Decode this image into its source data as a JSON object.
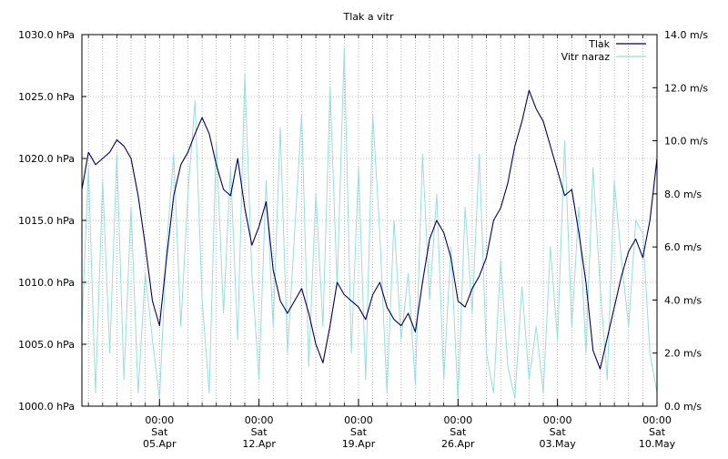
{
  "chart_data": {
    "type": "line",
    "title": "Tlak a vitr",
    "legend_position": "top-right",
    "grid": true,
    "y_left": {
      "range": [
        1000,
        1030
      ],
      "ticks": [
        1000,
        1005,
        1010,
        1015,
        1020,
        1025,
        1030
      ],
      "tick_labels": [
        "1000.0 hPa",
        "1005.0 hPa",
        "1010.0 hPa",
        "1015.0 hPa",
        "1020.0 hPa",
        "1025.0 hPa",
        "1030.0 hPa"
      ]
    },
    "y_right": {
      "range": [
        0,
        14
      ],
      "ticks": [
        0,
        2,
        4,
        6,
        8,
        10,
        12,
        14
      ],
      "tick_labels": [
        "0.0 m/s",
        "2.0 m/s",
        "4.0 m/s",
        "6.0 m/s",
        "8.0 m/s",
        "10.0 m/s",
        "12.0 m/s",
        "14.0 m/s"
      ]
    },
    "x_axis": {
      "range": [
        "2025-03-30T13:00",
        "2025-05-10T00:00"
      ],
      "ticks": [
        "2025-04-05T00:00",
        "2025-04-12T00:00",
        "2025-04-19T00:00",
        "2025-04-26T00:00",
        "2025-05-03T00:00",
        "2025-05-10T00:00"
      ],
      "tick_labels": [
        [
          "00:00",
          "Sat",
          "05.Apr"
        ],
        [
          "00:00",
          "Sat",
          "12.Apr"
        ],
        [
          "00:00",
          "Sat",
          "19.Apr"
        ],
        [
          "00:00",
          "Sat",
          "26.Apr"
        ],
        [
          "00:00",
          "Sat",
          "03.May"
        ],
        [
          "00:00",
          "Sat",
          "10.May"
        ]
      ]
    },
    "series": [
      {
        "name": "Tlak",
        "axis": "left",
        "color": "#000066",
        "x": [
          "2025-03-30T13:00",
          "2025-03-31T00:00",
          "2025-03-31T12:00",
          "2025-04-01T00:00",
          "2025-04-01T12:00",
          "2025-04-02T00:00",
          "2025-04-02T12:00",
          "2025-04-03T00:00",
          "2025-04-03T12:00",
          "2025-04-04T00:00",
          "2025-04-04T12:00",
          "2025-04-05T00:00",
          "2025-04-05T12:00",
          "2025-04-06T00:00",
          "2025-04-06T12:00",
          "2025-04-07T00:00",
          "2025-04-07T12:00",
          "2025-04-08T00:00",
          "2025-04-08T12:00",
          "2025-04-09T00:00",
          "2025-04-09T12:00",
          "2025-04-10T00:00",
          "2025-04-10T12:00",
          "2025-04-11T00:00",
          "2025-04-11T12:00",
          "2025-04-12T00:00",
          "2025-04-12T12:00",
          "2025-04-13T00:00",
          "2025-04-13T12:00",
          "2025-04-14T00:00",
          "2025-04-14T12:00",
          "2025-04-15T00:00",
          "2025-04-15T12:00",
          "2025-04-16T00:00",
          "2025-04-16T12:00",
          "2025-04-17T00:00",
          "2025-04-17T12:00",
          "2025-04-18T00:00",
          "2025-04-18T12:00",
          "2025-04-19T00:00",
          "2025-04-19T12:00",
          "2025-04-20T00:00",
          "2025-04-20T12:00",
          "2025-04-21T00:00",
          "2025-04-21T12:00",
          "2025-04-22T00:00",
          "2025-04-22T12:00",
          "2025-04-23T00:00",
          "2025-04-23T12:00",
          "2025-04-24T00:00",
          "2025-04-24T12:00",
          "2025-04-25T00:00",
          "2025-04-25T12:00",
          "2025-04-26T00:00",
          "2025-04-26T12:00",
          "2025-04-27T00:00",
          "2025-04-27T12:00",
          "2025-04-28T00:00",
          "2025-04-28T12:00",
          "2025-04-29T00:00",
          "2025-04-29T12:00",
          "2025-04-30T00:00",
          "2025-04-30T12:00",
          "2025-05-01T00:00",
          "2025-05-01T12:00",
          "2025-05-02T00:00",
          "2025-05-02T12:00",
          "2025-05-03T00:00",
          "2025-05-03T12:00",
          "2025-05-04T00:00",
          "2025-05-04T12:00",
          "2025-05-05T00:00",
          "2025-05-05T12:00",
          "2025-05-06T00:00",
          "2025-05-06T12:00",
          "2025-05-07T00:00",
          "2025-05-07T12:00",
          "2025-05-08T00:00",
          "2025-05-08T12:00",
          "2025-05-09T00:00",
          "2025-05-09T12:00",
          "2025-05-10T00:00"
        ],
        "values": [
          1017.5,
          1020.5,
          1019.5,
          1020.0,
          1020.5,
          1021.5,
          1021.0,
          1020.0,
          1017.0,
          1013.0,
          1008.5,
          1006.5,
          1012.0,
          1017.0,
          1019.5,
          1020.5,
          1022.0,
          1023.3,
          1022.0,
          1019.5,
          1017.5,
          1017.0,
          1020.0,
          1016.0,
          1013.0,
          1014.5,
          1016.5,
          1011.0,
          1008.5,
          1007.5,
          1008.5,
          1009.5,
          1007.5,
          1005.0,
          1003.5,
          1006.5,
          1010.0,
          1009.0,
          1008.5,
          1008.0,
          1007.0,
          1009.0,
          1010.0,
          1008.0,
          1007.0,
          1006.5,
          1007.5,
          1006.0,
          1010.0,
          1013.5,
          1015.0,
          1014.0,
          1012.0,
          1008.5,
          1008.0,
          1009.5,
          1010.5,
          1012.0,
          1015.0,
          1016.0,
          1018.0,
          1021.0,
          1023.0,
          1025.5,
          1024.0,
          1023.0,
          1021.0,
          1019.0,
          1017.0,
          1017.5,
          1014.0,
          1010.0,
          1004.5,
          1003.0,
          1005.5,
          1008.0,
          1010.5,
          1012.5,
          1013.5,
          1012.0,
          1015.0,
          1020.0
        ]
      },
      {
        "name": "Vitr naraz",
        "axis": "right",
        "color": "#99dddd",
        "x": [
          "2025-03-30T13:00",
          "2025-03-31T00:00",
          "2025-03-31T12:00",
          "2025-04-01T00:00",
          "2025-04-01T12:00",
          "2025-04-02T00:00",
          "2025-04-02T12:00",
          "2025-04-03T00:00",
          "2025-04-03T12:00",
          "2025-04-04T00:00",
          "2025-04-04T12:00",
          "2025-04-05T00:00",
          "2025-04-05T12:00",
          "2025-04-06T00:00",
          "2025-04-06T12:00",
          "2025-04-07T00:00",
          "2025-04-07T12:00",
          "2025-04-08T00:00",
          "2025-04-08T12:00",
          "2025-04-09T00:00",
          "2025-04-09T12:00",
          "2025-04-10T00:00",
          "2025-04-10T12:00",
          "2025-04-11T00:00",
          "2025-04-11T12:00",
          "2025-04-12T00:00",
          "2025-04-12T12:00",
          "2025-04-13T00:00",
          "2025-04-13T12:00",
          "2025-04-14T00:00",
          "2025-04-14T12:00",
          "2025-04-15T00:00",
          "2025-04-15T12:00",
          "2025-04-16T00:00",
          "2025-04-16T12:00",
          "2025-04-17T00:00",
          "2025-04-17T12:00",
          "2025-04-18T00:00",
          "2025-04-18T12:00",
          "2025-04-19T00:00",
          "2025-04-19T12:00",
          "2025-04-20T00:00",
          "2025-04-20T12:00",
          "2025-04-21T00:00",
          "2025-04-21T12:00",
          "2025-04-22T00:00",
          "2025-04-22T12:00",
          "2025-04-23T00:00",
          "2025-04-23T12:00",
          "2025-04-24T00:00",
          "2025-04-24T12:00",
          "2025-04-25T00:00",
          "2025-04-25T12:00",
          "2025-04-26T00:00",
          "2025-04-26T12:00",
          "2025-04-27T00:00",
          "2025-04-27T12:00",
          "2025-04-28T00:00",
          "2025-04-28T12:00",
          "2025-04-29T00:00",
          "2025-04-29T12:00",
          "2025-04-30T00:00",
          "2025-04-30T12:00",
          "2025-05-01T00:00",
          "2025-05-01T12:00",
          "2025-05-02T00:00",
          "2025-05-02T12:00",
          "2025-05-03T00:00",
          "2025-05-03T12:00",
          "2025-05-04T00:00",
          "2025-05-04T12:00",
          "2025-05-05T00:00",
          "2025-05-05T12:00",
          "2025-05-06T00:00",
          "2025-05-06T12:00",
          "2025-05-07T00:00",
          "2025-05-07T12:00",
          "2025-05-08T00:00",
          "2025-05-08T12:00",
          "2025-05-09T00:00",
          "2025-05-09T12:00",
          "2025-05-10T00:00"
        ],
        "values": [
          3.0,
          9.0,
          0.5,
          8.5,
          2.0,
          9.5,
          1.0,
          7.5,
          0.5,
          5.0,
          2.5,
          0.3,
          6.0,
          9.5,
          3.0,
          8.0,
          11.5,
          4.0,
          0.5,
          10.0,
          3.5,
          9.0,
          2.5,
          12.5,
          5.0,
          1.0,
          8.5,
          3.0,
          10.5,
          2.0,
          6.5,
          11.0,
          1.5,
          8.0,
          3.0,
          12.0,
          4.5,
          13.5,
          2.0,
          9.0,
          1.0,
          11.0,
          6.5,
          0.5,
          7.0,
          2.5,
          5.0,
          0.8,
          9.5,
          4.0,
          8.0,
          1.0,
          6.0,
          0.2,
          7.5,
          3.5,
          9.5,
          2.0,
          0.5,
          5.5,
          1.5,
          0.3,
          4.5,
          1.0,
          3.0,
          0.5,
          6.0,
          2.5,
          10.0,
          3.0,
          7.5,
          2.0,
          9.0,
          4.5,
          1.0,
          8.5,
          5.5,
          3.0,
          7.0,
          6.5,
          2.0,
          0.5
        ]
      }
    ]
  }
}
